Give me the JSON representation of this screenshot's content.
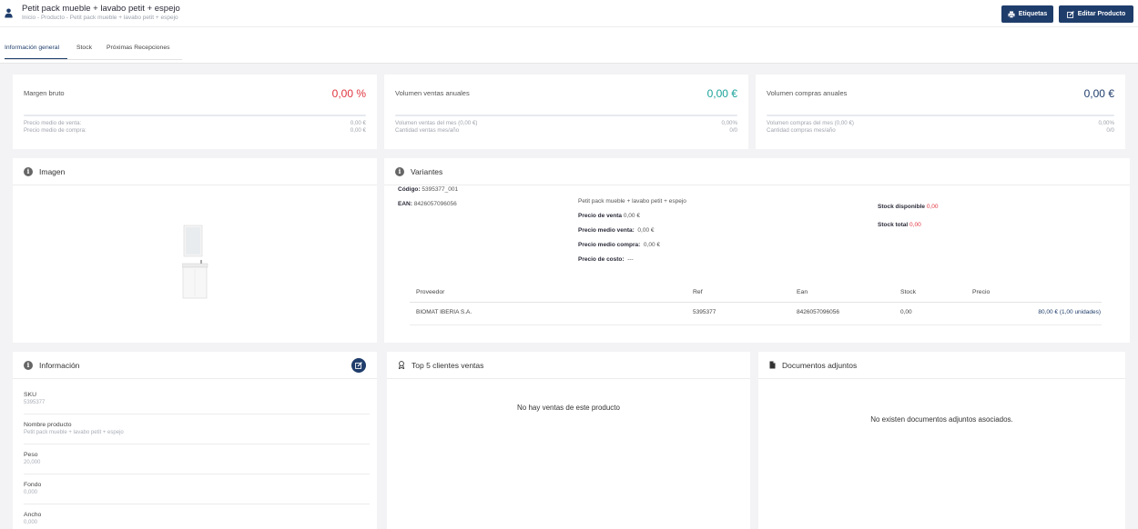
{
  "header": {
    "title": "Petit pack mueble + lavabo petit + espejo",
    "breadcrumb": "Inicio - Producto - Petit pack mueble + lavabo petit + espejo",
    "labels_button": "Etiquetas",
    "edit_button": "Editar Producto"
  },
  "tabs": [
    {
      "label": "Información general"
    },
    {
      "label": "Stock"
    },
    {
      "label": "Próximas Recepciones"
    }
  ],
  "kpis": [
    {
      "label": "Margen bruto",
      "value": "0,00 %",
      "color": "#e0353f",
      "rows": [
        {
          "label": "Precio medio de venta:",
          "value": "0,00 €"
        },
        {
          "label": "Precio medio de compra:",
          "value": "0,00 €"
        }
      ]
    },
    {
      "label": "Volumen ventas anuales",
      "value": "0,00 €",
      "color": "#1aa39a",
      "rows": [
        {
          "label": "Volumen ventas del mes (0,00 €)",
          "value": "0,00%"
        },
        {
          "label": "Cantidad ventas mes/año",
          "value": "0/0"
        }
      ]
    },
    {
      "label": "Volumen compras anuales",
      "value": "0,00 €",
      "color": "#1f3d6b",
      "rows": [
        {
          "label": "Volumen compras del mes (0,00 €)",
          "value": "0,00%"
        },
        {
          "label": "Cantidad compras mes/año",
          "value": "0/0"
        }
      ]
    }
  ],
  "image_card": {
    "title": "Imagen"
  },
  "variants": {
    "title": "Variantes",
    "code_label": "Código:",
    "code": "5395377_001",
    "ean_label": "EAN:",
    "ean": "8426057096056",
    "name": "Petit pack mueble + lavabo petit + espejo",
    "sale_price_label": "Precio de venta",
    "sale_price": "0,00 €",
    "avg_sale_label": "Precio medio venta:",
    "avg_sale": "0,00 €",
    "avg_buy_label": "Precio medio compra:",
    "avg_buy": "0,00 €",
    "cost_label": "Precio de costo:",
    "cost": "---",
    "stock_available_label": "Stock disponible",
    "stock_available": "0,00",
    "stock_total_label": "Stock total",
    "stock_total": "0,00",
    "table": {
      "headers": [
        "Proveedor",
        "Ref",
        "Ean",
        "Stock",
        "Precio"
      ],
      "row": {
        "supplier": "BIOMAT IBERIA S.A.",
        "ref": "5395377",
        "ean": "8426057096056",
        "stock": "0,00",
        "price": "80,00 € (1,00 unidades)"
      }
    }
  },
  "info_card": {
    "title": "Información",
    "fields": [
      {
        "label": "SKU",
        "value": "5395377"
      },
      {
        "label": "Nombre producto",
        "value": "Petit pack mueble + lavabo petit + espejo"
      },
      {
        "label": "Peso",
        "value": "20,000"
      },
      {
        "label": "Fondo",
        "value": "0,000"
      },
      {
        "label": "Ancho",
        "value": "0,000"
      }
    ]
  },
  "top_clients": {
    "title": "Top 5 clientes ventas",
    "empty": "No hay ventas de este producto"
  },
  "documents": {
    "title": "Documentos adjuntos",
    "empty": "No existen documentos adjuntos asociados."
  }
}
